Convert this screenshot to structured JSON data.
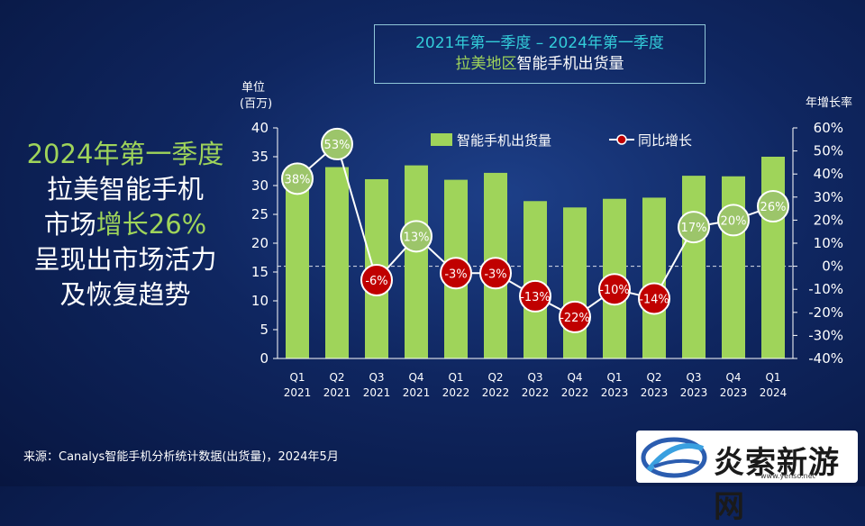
{
  "headline": {
    "line1": "2024年第一季度",
    "line2": "拉美智能手机",
    "line3a": "市场",
    "line3b": "增长26%",
    "line4": "呈现出市场活力",
    "line5": "及恢复趋势"
  },
  "title_box": {
    "line1": "2021年第一季度 – 2024年第一季度",
    "line2a": "拉美地区",
    "line2b": "智能手机出货量"
  },
  "source": "来源：Canalys智能手机分析统计数据(出货量)，2024年5月",
  "watermark": {
    "text": "炎索新游网",
    "url": "www.yenso.net"
  },
  "colors": {
    "bar": "#9fd45a",
    "marker_positive": "#9cc56a",
    "marker_negative": "#c00000",
    "line": "#ffffff",
    "accent_green": "#9fd45a",
    "accent_cyan": "#33ccd9"
  },
  "chart_data": {
    "type": "bar",
    "categories": [
      "Q1\n2021",
      "Q2\n2021",
      "Q3\n2021",
      "Q4\n2021",
      "Q1\n2022",
      "Q2\n2022",
      "Q3\n2022",
      "Q4\n2022",
      "Q1\n2023",
      "Q2\n2023",
      "Q3\n2023",
      "Q4\n2023",
      "Q1\n2024"
    ],
    "series": [
      {
        "name": "智能手机出货量",
        "type": "bar",
        "axis": "left",
        "values": [
          32.5,
          33.2,
          31.1,
          33.5,
          31.0,
          32.2,
          27.3,
          26.2,
          27.7,
          27.9,
          31.7,
          31.6,
          35.0
        ]
      },
      {
        "name": "同比增长",
        "type": "line",
        "axis": "right",
        "values": [
          38,
          53,
          -6,
          13,
          -3,
          -3,
          -13,
          -22,
          -10,
          -14,
          17,
          20,
          26
        ],
        "labels": [
          "38%",
          "53%",
          "-6%",
          "13%",
          "-3%",
          "-3%",
          "-13%",
          "-22%",
          "-10%",
          "-14%",
          "17%",
          "20%",
          "26%"
        ]
      }
    ],
    "left_axis": {
      "label_line1": "单位",
      "label_line2": "(百万)",
      "range": [
        0,
        40
      ],
      "ticks": [
        "0",
        "5",
        "10",
        "15",
        "20",
        "25",
        "30",
        "35",
        "40"
      ]
    },
    "right_axis": {
      "label": "年增长率",
      "range": [
        -40,
        60
      ],
      "ticks": [
        "-40%",
        "-30%",
        "-20%",
        "-10%",
        "0%",
        "10%",
        "20%",
        "30%",
        "40%",
        "50%",
        "60%"
      ]
    },
    "legend": {
      "position": "top",
      "bar_label": "智能手机出货量",
      "line_label": "同比增长"
    },
    "zero_reference_line": true
  }
}
